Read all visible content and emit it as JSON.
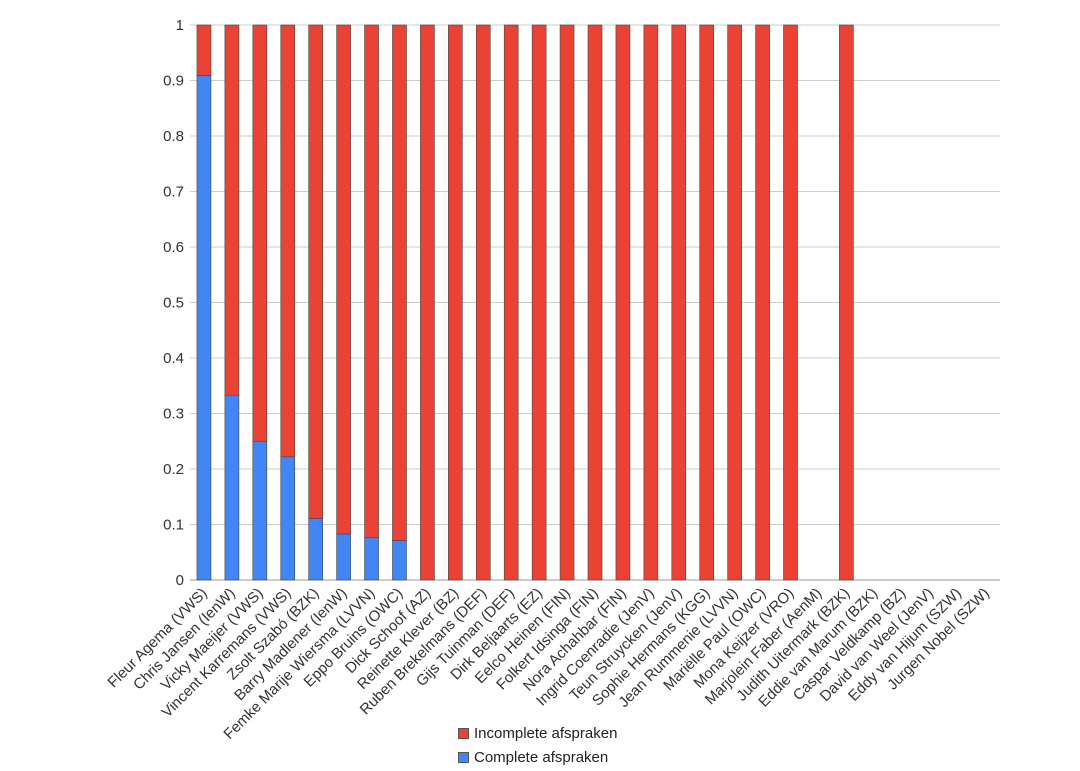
{
  "chart_data": {
    "type": "bar",
    "stacked": true,
    "title": "",
    "xlabel": "",
    "ylabel": "",
    "ylim": [
      0,
      1
    ],
    "yticks": [
      "0",
      "0.1",
      "0.2",
      "0.3",
      "0.4",
      "0.5",
      "0.6",
      "0.7",
      "0.8",
      "0.9",
      "1"
    ],
    "grid": true,
    "legend_position": "bottom",
    "categories": [
      "Fleur Agema (VWS)",
      "Chris Jansen (IenW)",
      "Vicky Maeijer (VWS)",
      "Vincent Karremans (VWS)",
      "Zsolt Szabó (BZK)",
      "Barry Madlener (IenW)",
      "Femke Marije Wiersma (LVVN)",
      "Eppo Bruins (OWC)",
      "Dick Schoof (AZ)",
      "Reinette Klever (BZ)",
      "Ruben Brekelmans (DEF)",
      "Gijs Tuinman (DEF)",
      "Dirk Beljaarts (EZ)",
      "Eelco Heinen (FIN)",
      "Folkert Idsinga (FIN)",
      "Nora Achahbar (FIN)",
      "Ingrid Coenradie (JenV)",
      "Teun Struycken (JenV)",
      "Sophie Hermans (KGG)",
      "Jean Rummenie (LVVN)",
      "Mariëlle Paul (OWC)",
      "Mona Keijzer (VRO)",
      "Marjolein Faber (AenM)",
      "Judith Uitermark (BZK)",
      "Eddie van Marum (BZK)",
      "Caspar Veldkamp (BZ)",
      "David van Weel (JenV)",
      "Eddy van Hijum (SZW)",
      "Jurgen Nobel (SZW)"
    ],
    "series": [
      {
        "name": "Complete afspraken",
        "color": "#4285f4",
        "values": [
          0.909,
          0.333,
          0.25,
          0.222,
          0.111,
          0.083,
          0.077,
          0.071,
          0,
          0,
          0,
          0,
          0,
          0,
          0,
          0,
          0,
          0,
          0,
          0,
          0,
          0,
          0,
          0,
          0,
          0,
          0,
          0,
          0
        ]
      },
      {
        "name": "Incomplete afspraken",
        "color": "#ea4335",
        "values": [
          0.091,
          0.667,
          0.75,
          0.778,
          0.889,
          0.917,
          0.923,
          0.929,
          1,
          1,
          1,
          1,
          1,
          1,
          1,
          1,
          1,
          1,
          1,
          1,
          1,
          1,
          0,
          1,
          0,
          0,
          0,
          0,
          0
        ]
      }
    ]
  }
}
